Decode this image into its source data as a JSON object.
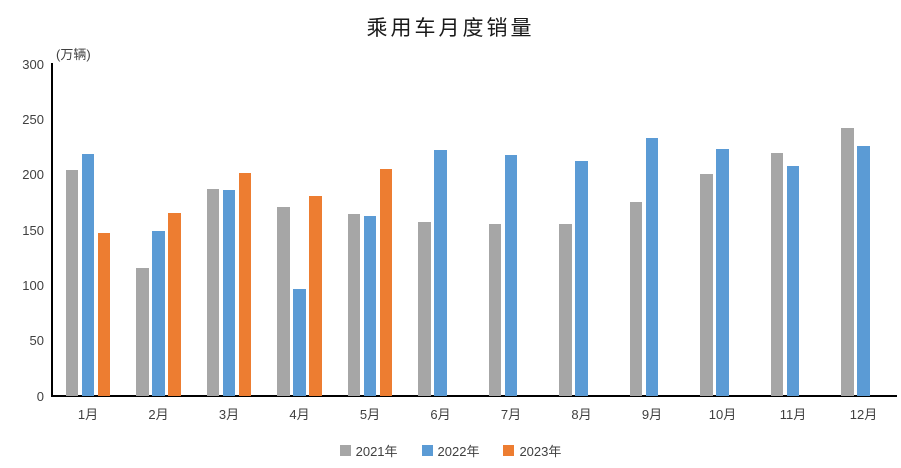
{
  "chart_data": {
    "type": "bar",
    "title": "乘用车月度销量",
    "unit_label": "(万辆)",
    "categories": [
      "1月",
      "2月",
      "3月",
      "4月",
      "5月",
      "6月",
      "7月",
      "8月",
      "9月",
      "10月",
      "11月",
      "12月"
    ],
    "series": [
      {
        "name": "2021年",
        "color": "#A6A6A6",
        "values": [
          204.5,
          115.6,
          187.4,
          170.4,
          164.6,
          156.9,
          155.1,
          155.2,
          175.1,
          200.4,
          219.2,
          242.2
        ]
      },
      {
        "name": "2022年",
        "color": "#5B9BD5",
        "values": [
          218.6,
          148.7,
          186.4,
          96.5,
          162.3,
          222.2,
          217.4,
          212.5,
          233.2,
          223.1,
          207.5,
          226.3
        ]
      },
      {
        "name": "2023年",
        "color": "#ED7D31",
        "values": [
          146.9,
          165.3,
          201.7,
          181.1,
          205.1,
          null,
          null,
          null,
          null,
          null,
          null,
          null
        ]
      }
    ],
    "ylim": [
      0,
      300
    ],
    "yticks": [
      0,
      50,
      100,
      150,
      200,
      250,
      300
    ],
    "grid": false,
    "legend_position": "bottom",
    "axis_color": "#000000",
    "label_color": "#404040"
  }
}
